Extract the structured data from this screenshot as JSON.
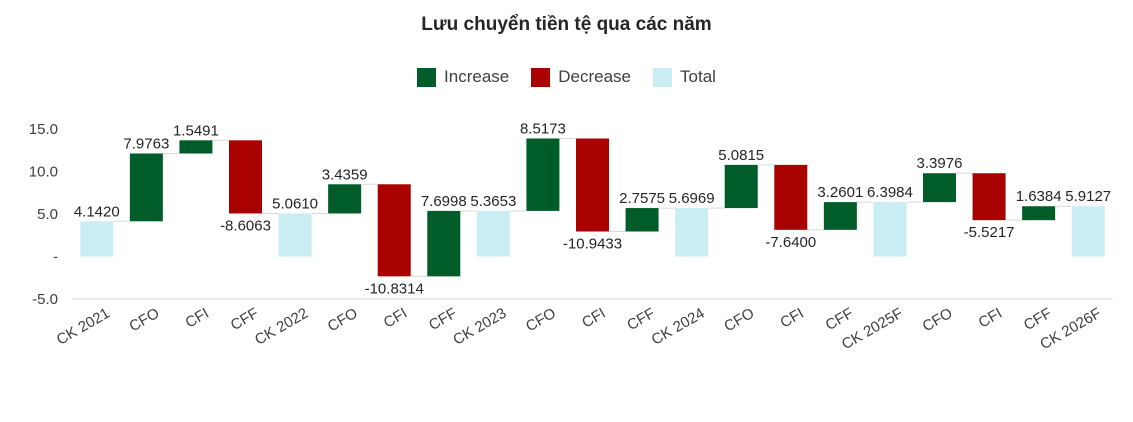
{
  "chart_data": {
    "type": "waterfall",
    "title": "Lưu chuyển tiền tệ qua các năm",
    "legend": [
      {
        "label": "Increase",
        "color": "#005C28"
      },
      {
        "label": "Decrease",
        "color": "#A90000"
      },
      {
        "label": "Total",
        "color": "#C9EDF3"
      }
    ],
    "legend_position": "top",
    "y_ticks": [
      "15.0",
      "10.0",
      "5.0",
      "-",
      "-5.0"
    ],
    "y_tick_values": [
      15,
      10,
      5,
      0,
      -5
    ],
    "ylim": [
      -5,
      15
    ],
    "grid": false,
    "categories": [
      "CK 2021",
      "CFO",
      "CFI",
      "CFF",
      "CK 2022",
      "CFO",
      "CFI",
      "CFF",
      "CK 2023",
      "CFO",
      "CFI",
      "CFF",
      "CK 2024",
      "CFO",
      "CFI",
      "CFF",
      "CK 2025F",
      "CFO",
      "CFI",
      "CFF",
      "CK 2026F"
    ],
    "values": [
      4.142,
      7.9763,
      1.5491,
      -8.6063,
      5.061,
      3.4359,
      -10.8314,
      7.6998,
      5.3653,
      8.5173,
      -10.9433,
      2.7575,
      5.6969,
      5.0815,
      -7.64,
      3.2601,
      6.3984,
      3.3976,
      -5.5217,
      1.6384,
      5.9127
    ],
    "kinds": [
      "total",
      "increase",
      "increase",
      "decrease",
      "total",
      "increase",
      "decrease",
      "increase",
      "total",
      "increase",
      "decrease",
      "increase",
      "total",
      "increase",
      "decrease",
      "increase",
      "total",
      "increase",
      "decrease",
      "increase",
      "total"
    ],
    "data_labels": [
      "4.1420",
      "7.9763",
      "1.5491",
      "-8.6063",
      "5.0610",
      "3.4359",
      "-10.8314",
      "7.6998",
      "5.3653",
      "8.5173",
      "-10.9433",
      "2.7575",
      "5.6969",
      "5.0815",
      "-7.6400",
      "3.2601",
      "6.3984",
      "3.3976",
      "-5.5217",
      "1.6384",
      "5.9127"
    ]
  }
}
